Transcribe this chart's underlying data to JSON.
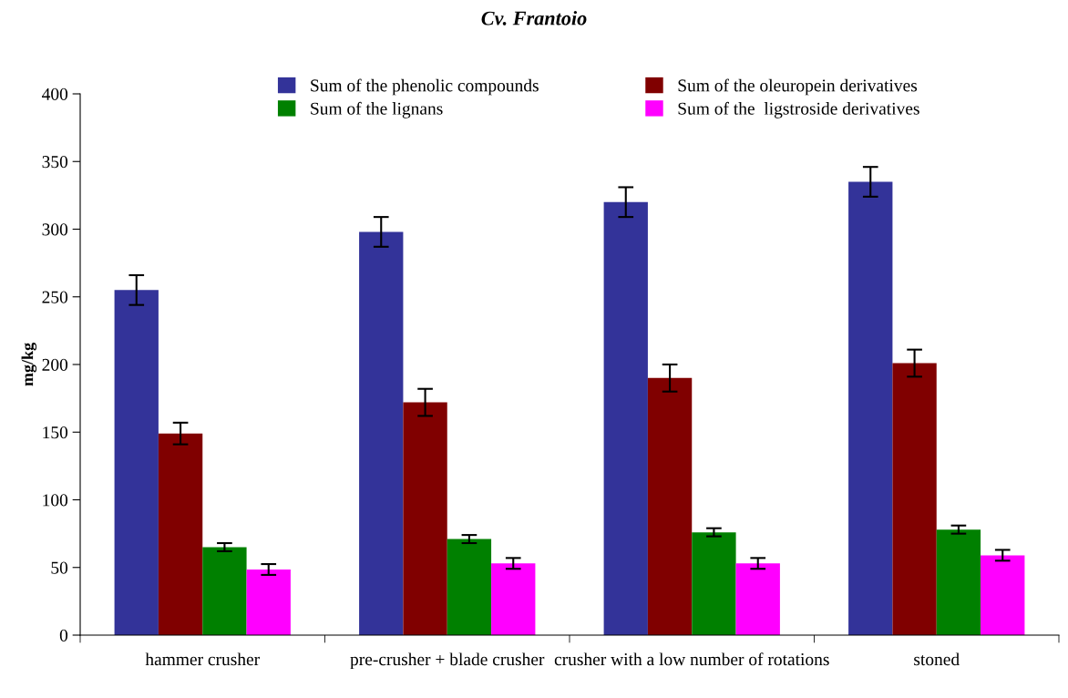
{
  "chart_data": {
    "type": "bar",
    "title": "Cv. Frantoio",
    "ylabel": "mg/kg",
    "categories": [
      "hammer crusher",
      "pre-crusher + blade crusher",
      "crusher with a low number of rotations",
      "stoned"
    ],
    "series": [
      {
        "name": "Sum of the phenolic compounds",
        "color": "#333399",
        "values": [
          255,
          298,
          320,
          335
        ],
        "errors": [
          11,
          11,
          11,
          11
        ]
      },
      {
        "name": "Sum of the oleuropein derivatives",
        "color": "#800000",
        "values": [
          149,
          172,
          190,
          201
        ],
        "errors": [
          8,
          10,
          10,
          10
        ]
      },
      {
        "name": "Sum of the lignans",
        "color": "#008000",
        "values": [
          65,
          71,
          76,
          78
        ],
        "errors": [
          3,
          3,
          3,
          3
        ]
      },
      {
        "name": "Sum of the  ligstroside derivatives",
        "color": "#ff00ff",
        "values": [
          48.5,
          53,
          53,
          59
        ],
        "errors": [
          4,
          4,
          4,
          4
        ]
      }
    ],
    "ylim": [
      0,
      400
    ],
    "yticks": [
      0,
      50,
      100,
      150,
      200,
      250,
      300,
      350,
      400
    ],
    "grid": false,
    "legend": "top"
  }
}
